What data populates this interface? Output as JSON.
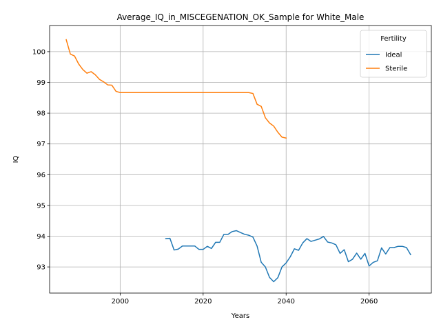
{
  "chart_data": {
    "type": "line",
    "title": "Average_IQ_in_MISCEGENATION_OK_Sample for White_Male",
    "xlabel": "Years",
    "ylabel": "IQ",
    "xlim": [
      1983,
      2075
    ],
    "ylim": [
      92.15,
      100.85
    ],
    "xticks": [
      2000,
      2020,
      2040,
      2060
    ],
    "yticks": [
      93,
      94,
      95,
      96,
      97,
      98,
      99,
      100
    ],
    "grid": true,
    "legend": {
      "title": "Fertility",
      "placement": "upper right"
    },
    "series": [
      {
        "name": "Ideal",
        "color": "#1f77b4",
        "points": [
          [
            2011,
            93.92
          ],
          [
            2012,
            93.93
          ],
          [
            2013,
            93.55
          ],
          [
            2014,
            93.58
          ],
          [
            2015,
            93.68
          ],
          [
            2016,
            93.68
          ],
          [
            2017,
            93.68
          ],
          [
            2018,
            93.68
          ],
          [
            2019,
            93.57
          ],
          [
            2020,
            93.57
          ],
          [
            2021,
            93.67
          ],
          [
            2022,
            93.6
          ],
          [
            2023,
            93.8
          ],
          [
            2024,
            93.8
          ],
          [
            2025,
            94.06
          ],
          [
            2026,
            94.06
          ],
          [
            2027,
            94.15
          ],
          [
            2028,
            94.18
          ],
          [
            2029,
            94.12
          ],
          [
            2030,
            94.06
          ],
          [
            2031,
            94.03
          ],
          [
            2032,
            93.97
          ],
          [
            2033,
            93.68
          ],
          [
            2034,
            93.15
          ],
          [
            2035,
            93.0
          ],
          [
            2036,
            92.66
          ],
          [
            2037,
            92.52
          ],
          [
            2038,
            92.65
          ],
          [
            2039,
            93.0
          ],
          [
            2040,
            93.13
          ],
          [
            2041,
            93.33
          ],
          [
            2042,
            93.59
          ],
          [
            2043,
            93.54
          ],
          [
            2044,
            93.78
          ],
          [
            2045,
            93.92
          ],
          [
            2046,
            93.83
          ],
          [
            2047,
            93.87
          ],
          [
            2048,
            93.91
          ],
          [
            2049,
            93.99
          ],
          [
            2050,
            93.81
          ],
          [
            2051,
            93.78
          ],
          [
            2052,
            93.72
          ],
          [
            2053,
            93.44
          ],
          [
            2054,
            93.56
          ],
          [
            2055,
            93.17
          ],
          [
            2056,
            93.25
          ],
          [
            2057,
            93.45
          ],
          [
            2058,
            93.25
          ],
          [
            2059,
            93.44
          ],
          [
            2060,
            93.03
          ],
          [
            2061,
            93.15
          ],
          [
            2062,
            93.2
          ],
          [
            2063,
            93.62
          ],
          [
            2064,
            93.42
          ],
          [
            2065,
            93.63
          ],
          [
            2066,
            93.63
          ],
          [
            2067,
            93.67
          ],
          [
            2068,
            93.67
          ],
          [
            2069,
            93.63
          ],
          [
            2070,
            93.4
          ]
        ]
      },
      {
        "name": "Sterile",
        "color": "#ff7f0e",
        "points": [
          [
            1987,
            100.39
          ],
          [
            1988,
            99.92
          ],
          [
            1989,
            99.86
          ],
          [
            1990,
            99.6
          ],
          [
            1991,
            99.42
          ],
          [
            1992,
            99.3
          ],
          [
            1993,
            99.35
          ],
          [
            1994,
            99.25
          ],
          [
            1995,
            99.1
          ],
          [
            1996,
            99.02
          ],
          [
            1997,
            98.92
          ],
          [
            1998,
            98.91
          ],
          [
            1999,
            98.71
          ],
          [
            2000,
            98.67
          ],
          [
            2005,
            98.67
          ],
          [
            2010,
            98.67
          ],
          [
            2015,
            98.67
          ],
          [
            2020,
            98.67
          ],
          [
            2025,
            98.67
          ],
          [
            2030,
            98.67
          ],
          [
            2031,
            98.67
          ],
          [
            2032,
            98.64
          ],
          [
            2033,
            98.29
          ],
          [
            2034,
            98.22
          ],
          [
            2035,
            97.85
          ],
          [
            2036,
            97.68
          ],
          [
            2037,
            97.58
          ],
          [
            2038,
            97.38
          ],
          [
            2039,
            97.22
          ],
          [
            2040,
            97.19
          ]
        ]
      }
    ]
  }
}
